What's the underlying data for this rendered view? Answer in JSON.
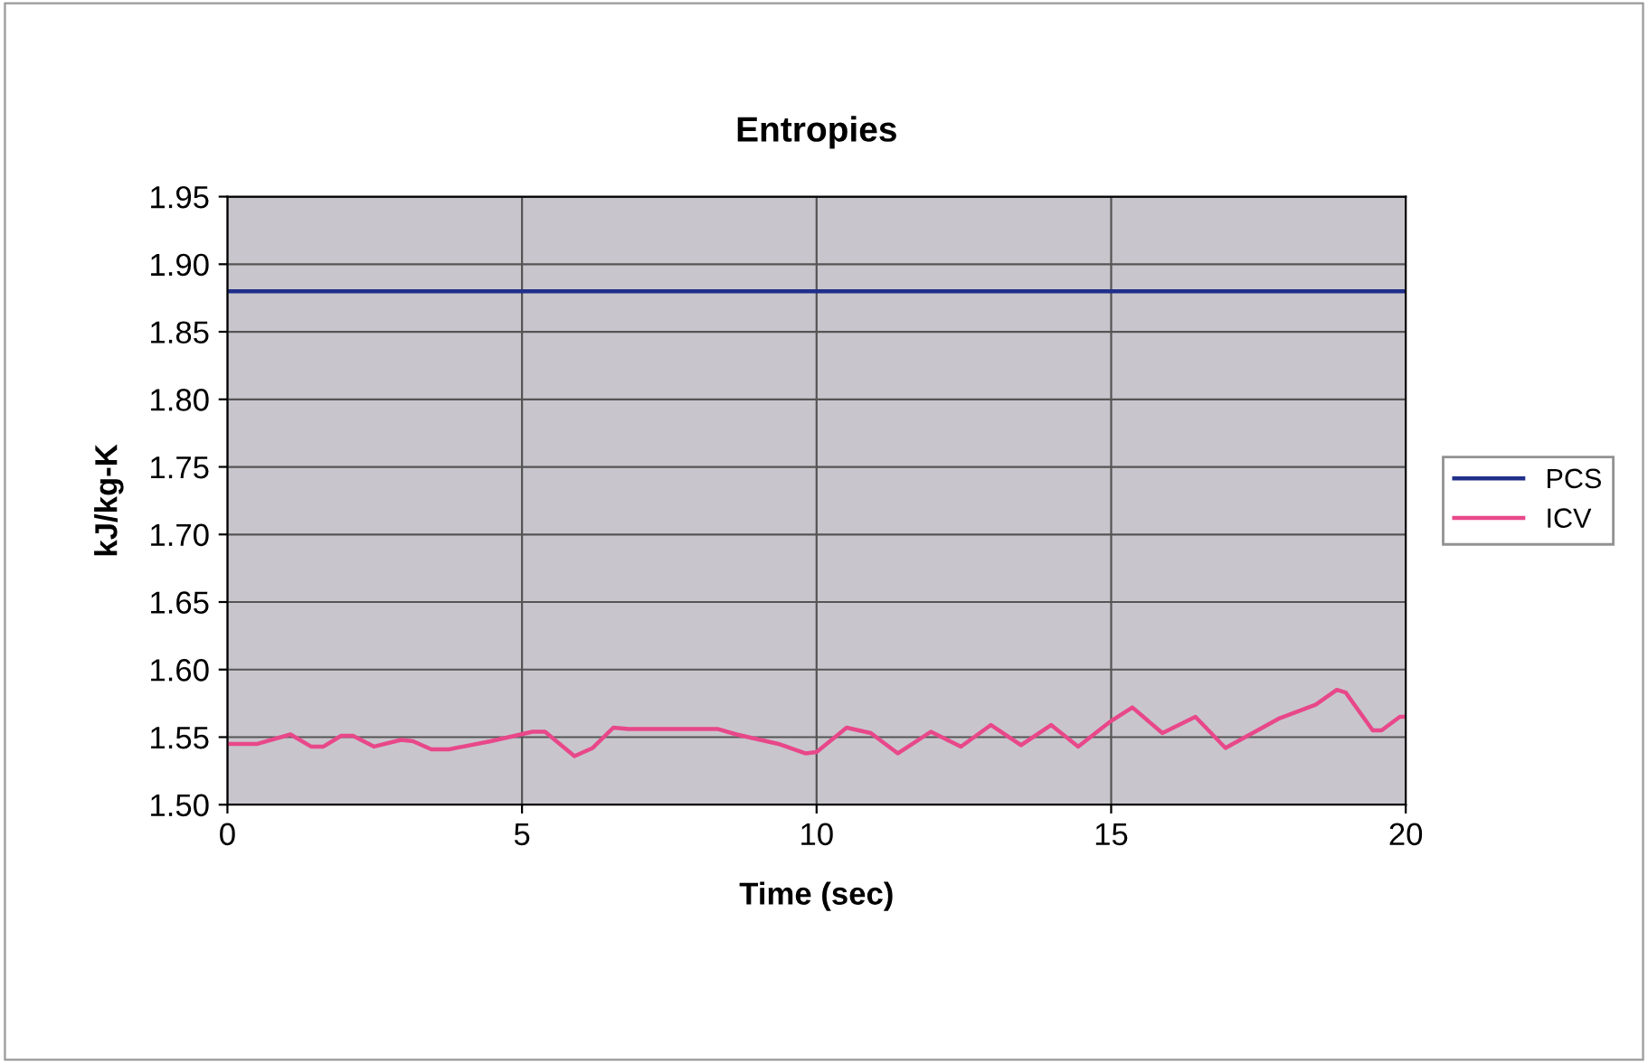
{
  "chart_data": {
    "type": "line",
    "title": "Entropies",
    "xlabel": "Time (sec)",
    "ylabel": "kJ/kg-K",
    "xlim": [
      0,
      20
    ],
    "xticks": [
      0,
      5,
      10,
      15,
      20
    ],
    "ylim": [
      1.5,
      1.95
    ],
    "yticks": [
      {
        "value": 1.5,
        "label": "1.50"
      },
      {
        "value": 1.55,
        "label": "1.55"
      },
      {
        "value": 1.6,
        "label": "1.60"
      },
      {
        "value": 1.65,
        "label": "1.65"
      },
      {
        "value": 1.7,
        "label": "1.70"
      },
      {
        "value": 1.75,
        "label": "1.75"
      },
      {
        "value": 1.8,
        "label": "1.80"
      },
      {
        "value": 1.85,
        "label": "1.85"
      },
      {
        "value": 1.9,
        "label": "1.90"
      },
      {
        "value": 1.95,
        "label": "1.95"
      }
    ],
    "grid": true,
    "legend": "right",
    "marker": "none",
    "line_style": "solid",
    "series": [
      {
        "name": "PCS",
        "color": "#1f2f8a",
        "x": [
          0,
          20
        ],
        "values": [
          1.88,
          1.88
        ]
      },
      {
        "name": "ICV",
        "color": "#e8488a",
        "x": [
          0,
          0.51,
          1.07,
          1.42,
          1.63,
          1.93,
          2.13,
          2.49,
          2.95,
          3.15,
          3.46,
          3.76,
          4.47,
          5.18,
          5.39,
          5.89,
          6.2,
          6.55,
          6.81,
          8.33,
          8.64,
          9.35,
          9.81,
          10.0,
          10.51,
          10.92,
          11.38,
          11.94,
          12.45,
          12.96,
          13.47,
          13.98,
          14.44,
          15.0,
          15.36,
          15.87,
          16.43,
          16.94,
          17.86,
          18.47,
          18.83,
          18.98,
          19.44,
          19.59,
          19.9,
          20
        ],
        "values": [
          1.545,
          1.545,
          1.552,
          1.543,
          1.543,
          1.551,
          1.551,
          1.543,
          1.548,
          1.547,
          1.541,
          1.541,
          1.547,
          1.554,
          1.554,
          1.536,
          1.542,
          1.557,
          1.556,
          1.556,
          1.552,
          1.545,
          1.538,
          1.539,
          1.557,
          1.553,
          1.538,
          1.554,
          1.543,
          1.559,
          1.544,
          1.559,
          1.543,
          1.562,
          1.572,
          1.553,
          1.565,
          1.542,
          1.564,
          1.574,
          1.585,
          1.583,
          1.555,
          1.555,
          1.565,
          1.565
        ]
      }
    ]
  }
}
